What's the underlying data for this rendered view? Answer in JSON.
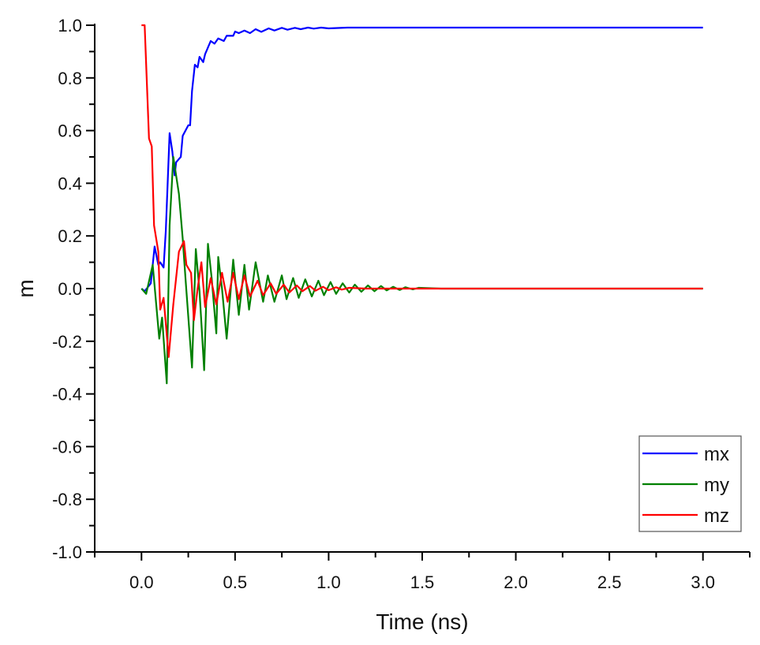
{
  "chart_data": {
    "type": "line",
    "title": "",
    "xlabel": "Time (ns)",
    "ylabel": "m",
    "xlim": [
      -0.25,
      3.25
    ],
    "ylim": [
      -1.0,
      1.0
    ],
    "xticks": [
      "0.0",
      "0.5",
      "1.0",
      "1.5",
      "2.0",
      "2.5",
      "3.0"
    ],
    "xtick_values": [
      0,
      0.5,
      1,
      1.5,
      2,
      2.5,
      3
    ],
    "yticks": [
      "-1.0",
      "-0.8",
      "-0.6",
      "-0.4",
      "-0.2",
      "0.0",
      "0.2",
      "0.4",
      "0.6",
      "0.8",
      "1.0"
    ],
    "ytick_values": [
      -1,
      -0.8,
      -0.6,
      -0.4,
      -0.2,
      0,
      0.2,
      0.4,
      0.6,
      0.8,
      1
    ],
    "grid": false,
    "legend_position": "bottom-right",
    "series": [
      {
        "name": "mx",
        "color": "#0000ff",
        "points": [
          [
            0,
            0
          ],
          [
            0.017,
            -0.01
          ],
          [
            0.05,
            0.02
          ],
          [
            0.07,
            0.16
          ],
          [
            0.09,
            0.09
          ],
          [
            0.1,
            0.1
          ],
          [
            0.118,
            0.08
          ],
          [
            0.13,
            0.22
          ],
          [
            0.15,
            0.59
          ],
          [
            0.165,
            0.52
          ],
          [
            0.177,
            0.43
          ],
          [
            0.185,
            0.48
          ],
          [
            0.21,
            0.5
          ],
          [
            0.22,
            0.58
          ],
          [
            0.25,
            0.62
          ],
          [
            0.26,
            0.62
          ],
          [
            0.27,
            0.75
          ],
          [
            0.285,
            0.85
          ],
          [
            0.3,
            0.84
          ],
          [
            0.31,
            0.88
          ],
          [
            0.33,
            0.86
          ],
          [
            0.34,
            0.89
          ],
          [
            0.37,
            0.94
          ],
          [
            0.39,
            0.93
          ],
          [
            0.41,
            0.95
          ],
          [
            0.44,
            0.94
          ],
          [
            0.455,
            0.96
          ],
          [
            0.49,
            0.96
          ],
          [
            0.5,
            0.976
          ],
          [
            0.52,
            0.97
          ],
          [
            0.55,
            0.98
          ],
          [
            0.58,
            0.97
          ],
          [
            0.61,
            0.985
          ],
          [
            0.64,
            0.975
          ],
          [
            0.68,
            0.988
          ],
          [
            0.71,
            0.98
          ],
          [
            0.75,
            0.99
          ],
          [
            0.78,
            0.983
          ],
          [
            0.82,
            0.99
          ],
          [
            0.85,
            0.985
          ],
          [
            0.89,
            0.991
          ],
          [
            0.92,
            0.987
          ],
          [
            0.96,
            0.991
          ],
          [
            1.0,
            0.988
          ],
          [
            1.1,
            0.991
          ],
          [
            3.0,
            0.991
          ]
        ]
      },
      {
        "name": "my",
        "color": "#008000",
        "points": [
          [
            0,
            0
          ],
          [
            0.025,
            -0.02
          ],
          [
            0.06,
            0.09
          ],
          [
            0.095,
            -0.19
          ],
          [
            0.11,
            -0.11
          ],
          [
            0.135,
            -0.36
          ],
          [
            0.15,
            0.24
          ],
          [
            0.17,
            0.5
          ],
          [
            0.2,
            0.36
          ],
          [
            0.22,
            0.19
          ],
          [
            0.235,
            0.04
          ],
          [
            0.27,
            -0.3
          ],
          [
            0.29,
            0.15
          ],
          [
            0.31,
            -0.01
          ],
          [
            0.335,
            -0.31
          ],
          [
            0.355,
            0.17
          ],
          [
            0.375,
            0.04
          ],
          [
            0.4,
            -0.17
          ],
          [
            0.41,
            0.12
          ],
          [
            0.43,
            0.0
          ],
          [
            0.455,
            -0.19
          ],
          [
            0.49,
            0.11
          ],
          [
            0.52,
            -0.1
          ],
          [
            0.55,
            0.09
          ],
          [
            0.575,
            -0.08
          ],
          [
            0.61,
            0.1
          ],
          [
            0.65,
            -0.05
          ],
          [
            0.675,
            0.05
          ],
          [
            0.71,
            -0.05
          ],
          [
            0.75,
            0.05
          ],
          [
            0.775,
            -0.04
          ],
          [
            0.81,
            0.04
          ],
          [
            0.84,
            -0.035
          ],
          [
            0.875,
            0.035
          ],
          [
            0.91,
            -0.03
          ],
          [
            0.945,
            0.03
          ],
          [
            0.975,
            -0.025
          ],
          [
            1.01,
            0.025
          ],
          [
            1.04,
            -0.02
          ],
          [
            1.075,
            0.02
          ],
          [
            1.11,
            -0.015
          ],
          [
            1.14,
            0.015
          ],
          [
            1.175,
            -0.012
          ],
          [
            1.21,
            0.012
          ],
          [
            1.245,
            -0.01
          ],
          [
            1.28,
            0.01
          ],
          [
            1.31,
            -0.007
          ],
          [
            1.345,
            0.007
          ],
          [
            1.38,
            -0.005
          ],
          [
            1.41,
            0.005
          ],
          [
            1.45,
            -0.003
          ],
          [
            1.48,
            0.003
          ],
          [
            1.6,
            0
          ],
          [
            3.0,
            0
          ]
        ]
      },
      {
        "name": "mz",
        "color": "#ff0000",
        "points": [
          [
            0,
            1.0
          ],
          [
            0.017,
            1.0
          ],
          [
            0.04,
            0.57
          ],
          [
            0.055,
            0.54
          ],
          [
            0.067,
            0.24
          ],
          [
            0.09,
            0.14
          ],
          [
            0.1,
            -0.08
          ],
          [
            0.118,
            -0.035
          ],
          [
            0.145,
            -0.26
          ],
          [
            0.17,
            -0.06
          ],
          [
            0.2,
            0.14
          ],
          [
            0.227,
            0.18
          ],
          [
            0.24,
            0.09
          ],
          [
            0.265,
            0.06
          ],
          [
            0.28,
            -0.12
          ],
          [
            0.3,
            0.0
          ],
          [
            0.32,
            0.1
          ],
          [
            0.34,
            -0.07
          ],
          [
            0.37,
            0.04
          ],
          [
            0.4,
            -0.06
          ],
          [
            0.43,
            0.06
          ],
          [
            0.46,
            -0.05
          ],
          [
            0.49,
            0.06
          ],
          [
            0.52,
            -0.04
          ],
          [
            0.55,
            0.05
          ],
          [
            0.58,
            -0.03
          ],
          [
            0.62,
            0.03
          ],
          [
            0.65,
            -0.025
          ],
          [
            0.69,
            0.02
          ],
          [
            0.72,
            -0.02
          ],
          [
            0.76,
            0.015
          ],
          [
            0.79,
            -0.015
          ],
          [
            0.83,
            0.012
          ],
          [
            0.86,
            -0.01
          ],
          [
            0.9,
            0.01
          ],
          [
            0.93,
            -0.008
          ],
          [
            0.97,
            0.007
          ],
          [
            1.0,
            -0.006
          ],
          [
            1.04,
            0.005
          ],
          [
            1.07,
            -0.004
          ],
          [
            1.11,
            0.003
          ],
          [
            1.2,
            0
          ],
          [
            3.0,
            0
          ]
        ]
      }
    ]
  }
}
